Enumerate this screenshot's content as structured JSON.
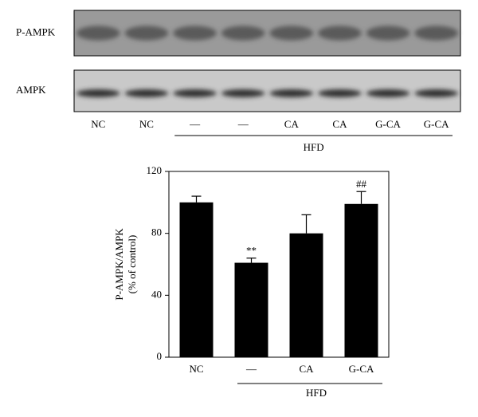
{
  "blot": {
    "rows": [
      "P-AMPK",
      "AMPK"
    ],
    "lanes": [
      {
        "label": "NC",
        "hfd": false
      },
      {
        "label": "NC",
        "hfd": false
      },
      {
        "label": "—",
        "hfd": true
      },
      {
        "label": "—",
        "hfd": true
      },
      {
        "label": "CA",
        "hfd": true
      },
      {
        "label": "CA",
        "hfd": true
      },
      {
        "label": "G-CA",
        "hfd": true
      },
      {
        "label": "G-CA",
        "hfd": true
      }
    ],
    "group_label": "HFD"
  },
  "chart_data": {
    "type": "bar",
    "ylabel": [
      "P-AMPK/AMPK",
      "(% of control)"
    ],
    "categories": [
      "NC",
      "—",
      "CA",
      "G-CA"
    ],
    "values": [
      100,
      61,
      80,
      99
    ],
    "errors": [
      4,
      3,
      12,
      8
    ],
    "annotations": [
      {
        "text": "**",
        "category": "—"
      },
      {
        "text": "##",
        "category": "G-CA"
      }
    ],
    "group": {
      "label": "HFD",
      "members": [
        false,
        true,
        true,
        true
      ]
    },
    "color": "#000000",
    "ylim": [
      0,
      120
    ],
    "yticks": [
      0,
      40,
      80,
      120
    ],
    "grid": false
  }
}
